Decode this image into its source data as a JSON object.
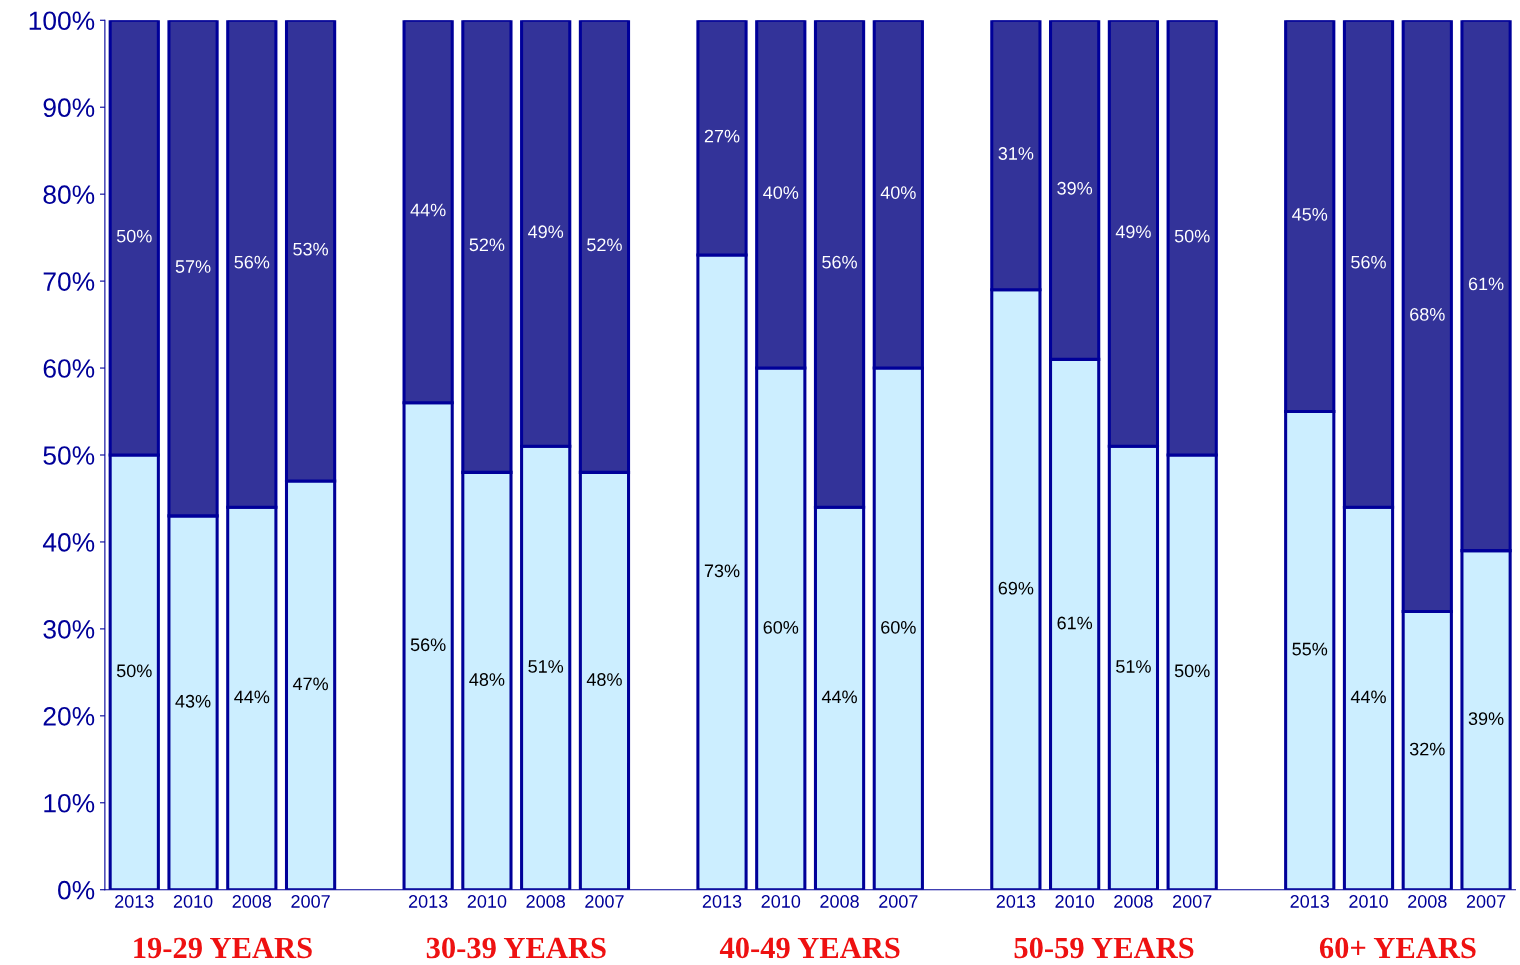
{
  "chart_data": {
    "type": "bar",
    "stacked": true,
    "categories": [
      "2013",
      "2010",
      "2008",
      "2007",
      null,
      "2013",
      "2010",
      "2008",
      "2007",
      null,
      "2013",
      "2010",
      "2008",
      "2007",
      null,
      "2013",
      "2010",
      "2008",
      "2007",
      null,
      "2013",
      "2010",
      "2008",
      "2007"
    ],
    "series": [
      {
        "color": "#cceeff",
        "values": [
          50,
          43,
          44,
          47,
          null,
          56,
          48,
          51,
          48,
          null,
          73,
          60,
          44,
          60,
          null,
          69,
          61,
          51,
          50,
          null,
          55,
          44,
          32,
          39
        ],
        "value_labels": [
          "50%",
          "43%",
          "44%",
          "47%",
          null,
          "56%",
          "48%",
          "51%",
          "48%",
          null,
          "73%",
          "60%",
          "44%",
          "60%",
          null,
          "69%",
          "61%",
          "51%",
          "50%",
          null,
          "55%",
          "44%",
          "32%",
          "39%"
        ]
      },
      {
        "color": "#333399",
        "values": [
          50,
          57,
          56,
          53,
          null,
          44,
          52,
          49,
          52,
          null,
          27,
          40,
          56,
          40,
          null,
          31,
          39,
          49,
          50,
          null,
          45,
          56,
          68,
          61
        ],
        "value_labels": [
          "50%",
          "57%",
          "56%",
          "53%",
          null,
          "44%",
          "52%",
          "49%",
          "52%",
          null,
          "27%",
          "40%",
          "56%",
          "40%",
          null,
          "31%",
          "39%",
          "49%",
          "50%",
          null,
          "45%",
          "56%",
          "68%",
          "61%"
        ]
      }
    ],
    "ylim": [
      0,
      100
    ],
    "yticks": [
      {
        "value": 0,
        "label": "0%"
      },
      {
        "value": 10,
        "label": "10%"
      },
      {
        "value": 20,
        "label": "20%"
      },
      {
        "value": 30,
        "label": "30%"
      },
      {
        "value": 40,
        "label": "40%"
      },
      {
        "value": 50,
        "label": "50%"
      },
      {
        "value": 60,
        "label": "60%"
      },
      {
        "value": 70,
        "label": "70%"
      },
      {
        "value": 80,
        "label": "80%"
      },
      {
        "value": 90,
        "label": "90%"
      },
      {
        "value": 100,
        "label": "100%"
      }
    ],
    "annotations": [
      "19-29 YEARS",
      "30-39 YEARS",
      "40-49 YEARS",
      "50-59 YEARS",
      "60+ YEARS"
    ],
    "grid": false,
    "legend": false
  }
}
